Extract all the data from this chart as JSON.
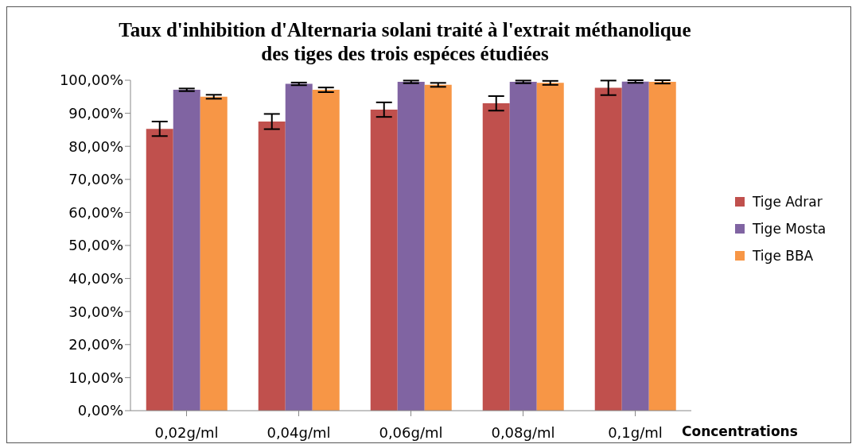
{
  "chart_data": {
    "type": "bar",
    "title": "Taux d'inhibition d'Alternaria solani traité à l'extrait méthanolique\ndes tiges des trois espéces étudiées",
    "xlabel": "Concentrations",
    "categories": [
      "0,02g/ml",
      "0,04g/ml",
      "0,06g/ml",
      "0,08g/ml",
      "0,1g/ml"
    ],
    "series": [
      {
        "name": "Tige Adrar",
        "color": "#c0504d",
        "values": [
          85.3,
          87.5,
          91.1,
          93.0,
          97.7
        ],
        "errors": [
          2.2,
          2.3,
          2.2,
          2.2,
          2.2
        ]
      },
      {
        "name": "Tige Mosta",
        "color": "#8064a2",
        "values": [
          97.1,
          98.9,
          99.5,
          99.5,
          99.6
        ],
        "errors": [
          0.4,
          0.4,
          0.4,
          0.4,
          0.4
        ]
      },
      {
        "name": "Tige BBA",
        "color": "#f79646",
        "values": [
          95.0,
          97.1,
          98.6,
          99.2,
          99.5
        ],
        "errors": [
          0.6,
          0.7,
          0.6,
          0.6,
          0.5
        ]
      }
    ],
    "ylim": [
      0,
      100
    ],
    "yticks": [
      {
        "value": 0,
        "label": "0,00%"
      },
      {
        "value": 10,
        "label": "10,00%"
      },
      {
        "value": 20,
        "label": "20,00%"
      },
      {
        "value": 30,
        "label": "30,00%"
      },
      {
        "value": 40,
        "label": "40,00%"
      },
      {
        "value": 50,
        "label": "50,00%"
      },
      {
        "value": 60,
        "label": "60,00%"
      },
      {
        "value": 70,
        "label": "70,00%"
      },
      {
        "value": 80,
        "label": "80,00%"
      },
      {
        "value": 90,
        "label": "90,00%"
      },
      {
        "value": 100,
        "label": "100,00%"
      }
    ],
    "grid": false,
    "legend": "right"
  }
}
